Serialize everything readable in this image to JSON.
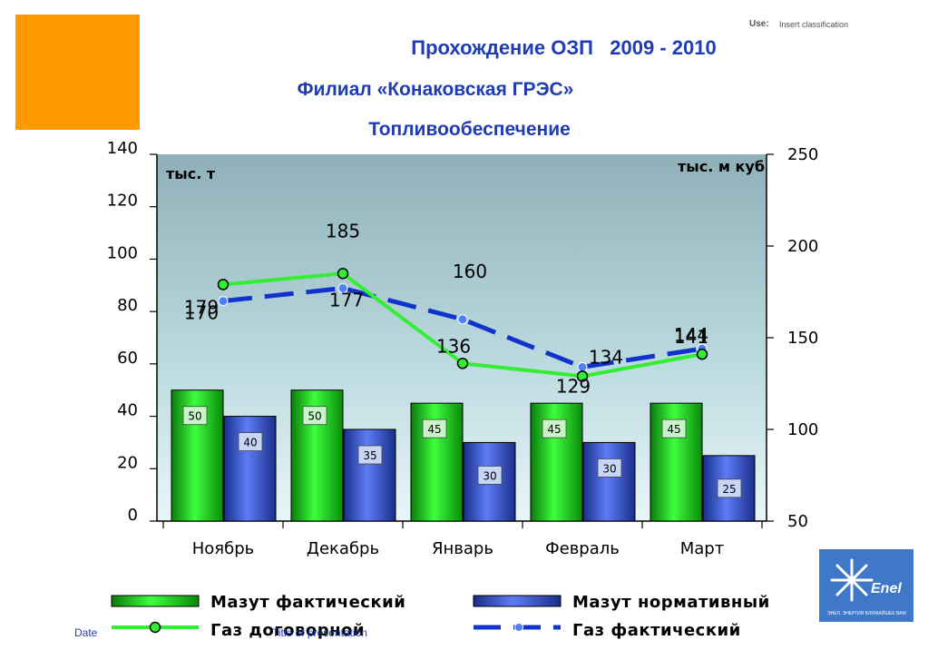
{
  "header": {
    "use_label": "Use:",
    "use_value": "Insert classification",
    "title_line1": "Прохождение ОЗП   2009 - 2010",
    "title_line2": "Филиал «Конаковская ГРЭС»",
    "title_line3": "Топливообеспечение"
  },
  "footer": {
    "date": "Date",
    "presentation_title": "Title of presentation"
  },
  "logo": {
    "name": "Enel",
    "tagline": "ЭНЕЛ. ЭНЕРГИЯ БЛИЖАЙШЕЕ ВАМ"
  },
  "colors": {
    "mazut_fact": "#22CC22",
    "mazut_norm": "#3355DD",
    "gas_contract": "#33EE33",
    "gas_fact": "#1133CC",
    "title": "#1F3CB4",
    "orange": "#FF9900"
  },
  "chart_data": {
    "type": "bar",
    "categories": [
      "Ноябрь",
      "Декабрь",
      "Январь",
      "Февраль",
      "Март"
    ],
    "left_axis": {
      "label": "тыс. т",
      "ylim": [
        0,
        140
      ],
      "ticks": [
        "0",
        "20",
        "40",
        "60",
        "80",
        "100",
        "120",
        "140"
      ]
    },
    "right_axis": {
      "label": "тыс. м куб",
      "ylim": [
        50,
        250
      ],
      "ticks": [
        "50",
        "100",
        "150",
        "200",
        "250"
      ]
    },
    "series": [
      {
        "name": "Мазут фактический",
        "type": "bar",
        "axis": "left",
        "values": [
          50,
          50,
          45,
          45,
          45
        ]
      },
      {
        "name": "Мазут нормативный",
        "type": "bar",
        "axis": "left",
        "values": [
          40,
          35,
          30,
          30,
          25
        ]
      },
      {
        "name": "Газ договорной",
        "type": "line",
        "axis": "right",
        "values": [
          179,
          185,
          136,
          129,
          141
        ]
      },
      {
        "name": "Газ фактический",
        "type": "line",
        "axis": "right",
        "values": [
          170,
          177,
          160,
          134,
          144
        ]
      }
    ],
    "legend": "bottom",
    "grid": false
  }
}
